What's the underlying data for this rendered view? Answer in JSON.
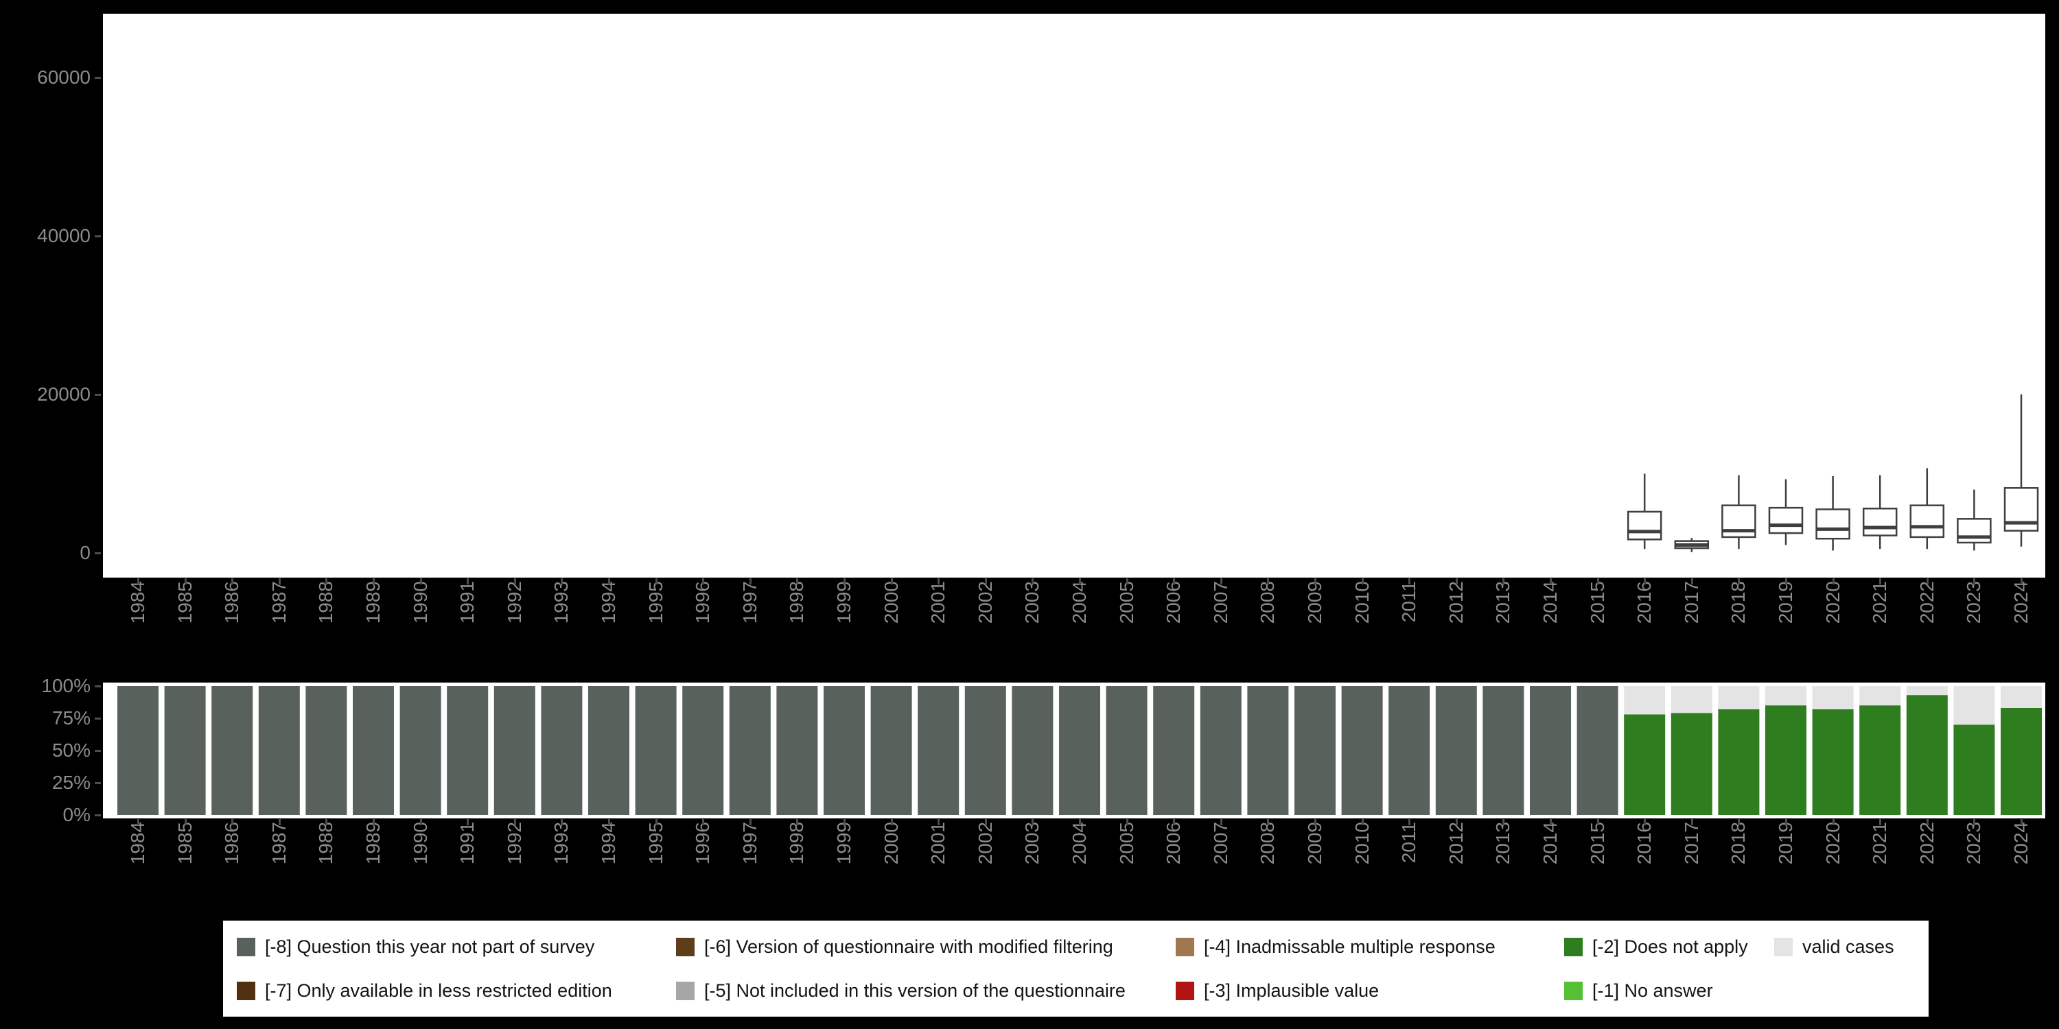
{
  "colors": {
    "background": "#000000",
    "panel": "#ffffff",
    "axis_text": "#8c8c8c",
    "box_stroke": "#3f3f3f",
    "m8": "#59615c",
    "m7": "#4f3112",
    "m6": "#5e3d1b",
    "m5": "#a6a6a6",
    "m4": "#a07850",
    "m3": "#b11212",
    "m2": "#2e7d1f",
    "m1": "#55c033",
    "valid": "#e4e4e4"
  },
  "years": [
    "1984",
    "1985",
    "1986",
    "1987",
    "1988",
    "1989",
    "1990",
    "1991",
    "1992",
    "1993",
    "1994",
    "1995",
    "1996",
    "1997",
    "1998",
    "1999",
    "2000",
    "2001",
    "2002",
    "2003",
    "2004",
    "2005",
    "2006",
    "2007",
    "2008",
    "2009",
    "2010",
    "2011",
    "2012",
    "2013",
    "2014",
    "2015",
    "2016",
    "2017",
    "2018",
    "2019",
    "2020",
    "2021",
    "2022",
    "2023",
    "2024"
  ],
  "chart_data": [
    {
      "type": "boxplot",
      "title": "",
      "xlabel": "",
      "ylabel": "",
      "yticks": [
        0,
        20000,
        40000,
        60000
      ],
      "ytick_labels": [
        "0",
        "20000",
        "40000",
        "60000"
      ],
      "ylim": [
        0,
        68000
      ],
      "grid": false,
      "boxes": [
        {
          "year": "2016",
          "min": 500,
          "q1": 1700,
          "median": 2700,
          "q3": 5200,
          "max": 10000
        },
        {
          "year": "2017",
          "min": 100,
          "q1": 600,
          "median": 1000,
          "q3": 1500,
          "max": 1900
        },
        {
          "year": "2018",
          "min": 500,
          "q1": 2000,
          "median": 2800,
          "q3": 6000,
          "max": 9800
        },
        {
          "year": "2019",
          "min": 1000,
          "q1": 2500,
          "median": 3500,
          "q3": 5700,
          "max": 9300
        },
        {
          "year": "2020",
          "min": 300,
          "q1": 1800,
          "median": 3000,
          "q3": 5500,
          "max": 9700
        },
        {
          "year": "2021",
          "min": 500,
          "q1": 2200,
          "median": 3200,
          "q3": 5600,
          "max": 9800
        },
        {
          "year": "2022",
          "min": 500,
          "q1": 2000,
          "median": 3300,
          "q3": 6000,
          "max": 10700
        },
        {
          "year": "2023",
          "min": 300,
          "q1": 1300,
          "median": 2000,
          "q3": 4300,
          "max": 8000
        },
        {
          "year": "2024",
          "min": 800,
          "q1": 2800,
          "median": 3800,
          "q3": 8200,
          "max": 20000
        }
      ]
    },
    {
      "type": "stacked-bar-percent",
      "title": "",
      "xlabel": "",
      "ylabel": "",
      "yticks": [
        0,
        25,
        50,
        75,
        100
      ],
      "ytick_labels": [
        "0%",
        "25%",
        "50%",
        "75%",
        "100%"
      ],
      "ylim": [
        0,
        100
      ],
      "grid": false,
      "categories": [
        "1984",
        "1985",
        "1986",
        "1987",
        "1988",
        "1989",
        "1990",
        "1991",
        "1992",
        "1993",
        "1994",
        "1995",
        "1996",
        "1997",
        "1998",
        "1999",
        "2000",
        "2001",
        "2002",
        "2003",
        "2004",
        "2005",
        "2006",
        "2007",
        "2008",
        "2009",
        "2010",
        "2011",
        "2012",
        "2013",
        "2014",
        "2015",
        "2016",
        "2017",
        "2018",
        "2019",
        "2020",
        "2021",
        "2022",
        "2023",
        "2024"
      ],
      "series": [
        {
          "name": "[-8] Question this year not part of survey",
          "color_key": "m8",
          "values": [
            100,
            100,
            100,
            100,
            100,
            100,
            100,
            100,
            100,
            100,
            100,
            100,
            100,
            100,
            100,
            100,
            100,
            100,
            100,
            100,
            100,
            100,
            100,
            100,
            100,
            100,
            100,
            100,
            100,
            100,
            100,
            100,
            0,
            0,
            0,
            0,
            0,
            0,
            0,
            0,
            0
          ]
        },
        {
          "name": "[-2] Does not apply",
          "color_key": "m2",
          "values": [
            0,
            0,
            0,
            0,
            0,
            0,
            0,
            0,
            0,
            0,
            0,
            0,
            0,
            0,
            0,
            0,
            0,
            0,
            0,
            0,
            0,
            0,
            0,
            0,
            0,
            0,
            0,
            0,
            0,
            0,
            0,
            0,
            78,
            79,
            82,
            85,
            82,
            85,
            93,
            70,
            83
          ]
        },
        {
          "name": "valid cases",
          "color_key": "valid",
          "values": [
            0,
            0,
            0,
            0,
            0,
            0,
            0,
            0,
            0,
            0,
            0,
            0,
            0,
            0,
            0,
            0,
            0,
            0,
            0,
            0,
            0,
            0,
            0,
            0,
            0,
            0,
            0,
            0,
            0,
            0,
            0,
            0,
            22,
            21,
            18,
            15,
            18,
            15,
            7,
            30,
            17
          ]
        }
      ]
    }
  ],
  "legend": {
    "items": [
      {
        "key": "m8",
        "label": "[-8] Question this year not part of survey",
        "row": 1,
        "col": 1
      },
      {
        "key": "m7",
        "label": "[-7] Only available in less restricted edition",
        "row": 2,
        "col": 1
      },
      {
        "key": "m6",
        "label": "[-6] Version of questionnaire with modified filtering",
        "row": 1,
        "col": 2
      },
      {
        "key": "m5",
        "label": "[-5] Not included in this version of the questionnaire",
        "row": 2,
        "col": 2
      },
      {
        "key": "m4",
        "label": "[-4] Inadmissable multiple response",
        "row": 1,
        "col": 3
      },
      {
        "key": "m3",
        "label": "[-3] Implausible value",
        "row": 2,
        "col": 3
      },
      {
        "key": "m2",
        "label": "[-2] Does not apply",
        "row": 1,
        "col": 4
      },
      {
        "key": "m1",
        "label": "[-1] No answer",
        "row": 2,
        "col": 4
      },
      {
        "key": "valid",
        "label": "valid cases",
        "row": 1,
        "col": 5
      }
    ]
  }
}
